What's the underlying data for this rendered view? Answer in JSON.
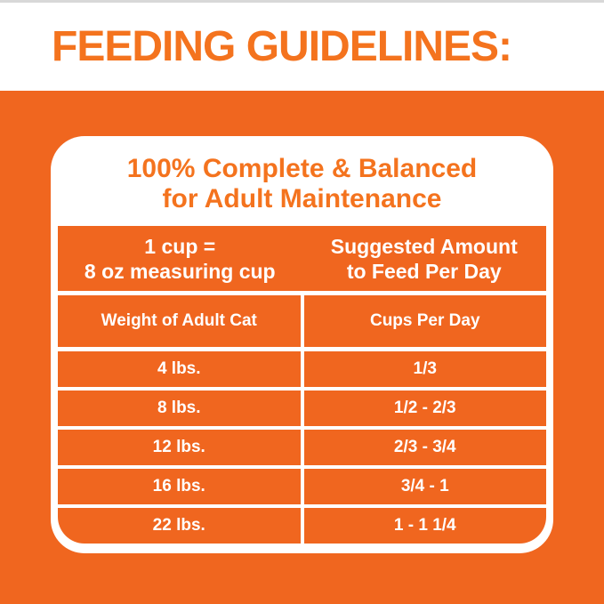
{
  "page": {
    "title": "FEEDING GUIDELINES:"
  },
  "card": {
    "heading_line1": "100% Complete & Balanced",
    "heading_line2": "for Adult Maintenance",
    "intro": {
      "left_line1": "1 cup =",
      "left_line2": "8 oz measuring cup",
      "right_line1": "Suggested Amount",
      "right_line2": "to Feed Per Day"
    },
    "columns": [
      "Weight of Adult Cat",
      "Cups Per Day"
    ],
    "rows": [
      {
        "weight": "4 lbs.",
        "cups": "1/3"
      },
      {
        "weight": "8 lbs.",
        "cups": "1/2 - 2/3"
      },
      {
        "weight": "12 lbs.",
        "cups": "2/3 - 3/4"
      },
      {
        "weight": "16 lbs.",
        "cups": "3/4 - 1"
      },
      {
        "weight": "22 lbs.",
        "cups": "1 - 1 1/4"
      }
    ]
  },
  "colors": {
    "orange_background": "#F0661F",
    "orange_text": "#F4731E",
    "panel_white": "#FFFFFF",
    "top_edge_gray": "#D8D8D8"
  },
  "chart_data": {
    "type": "table",
    "title": "FEEDING GUIDELINES",
    "subtitle": "100% Complete & Balanced for Adult Maintenance",
    "note": "1 cup = 8 oz measuring cup; Suggested Amount to Feed Per Day",
    "columns": [
      "Weight of Adult Cat",
      "Cups Per Day"
    ],
    "rows": [
      [
        "4 lbs.",
        "1/3"
      ],
      [
        "8 lbs.",
        "1/2 - 2/3"
      ],
      [
        "12 lbs.",
        "2/3 - 3/4"
      ],
      [
        "16 lbs.",
        "3/4 - 1"
      ],
      [
        "22 lbs.",
        "1 - 1 1/4"
      ]
    ]
  }
}
